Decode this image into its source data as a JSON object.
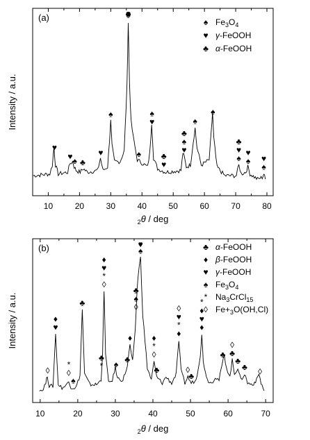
{
  "chart_data": [
    {
      "type": "line",
      "panel_label": "(a)",
      "xlabel": "2θ / deg",
      "ylabel": "Intensity / a.u.",
      "xlim": [
        5,
        82
      ],
      "xticks": [
        10,
        20,
        30,
        40,
        50,
        60,
        70,
        80
      ],
      "ylim": [
        0,
        1
      ],
      "legend_position": "top-right",
      "legend": [
        {
          "symbol": "♠",
          "label": "Fe3O4"
        },
        {
          "symbol": "♥",
          "label": "γ-FeOOH"
        },
        {
          "symbol": "♣",
          "label": "α-FeOOH"
        }
      ],
      "series": [
        {
          "x": [
            5.2,
            10.5,
            11.3,
            11.8,
            12.3,
            13.2,
            16.2,
            17.0,
            17.8,
            18.3,
            18.9,
            20.2,
            21.2,
            22.5,
            25.8,
            26.7,
            27.5,
            29.0,
            29.6,
            30.0,
            30.4,
            31.2,
            33.0,
            34.3,
            35.2,
            35.6,
            36.0,
            36.5,
            37.3,
            38.5,
            41.8,
            42.5,
            43.1,
            43.7,
            45.0,
            46.2,
            47.5,
            52.5,
            53.1,
            53.6,
            54.2,
            55.5,
            56.4,
            57.0,
            57.6,
            59.0,
            61.5,
            62.2,
            62.6,
            63.0,
            64.0,
            66.5,
            70.2,
            71.0,
            71.8,
            73.2,
            73.9,
            74.6,
            77.0,
            78.5,
            79.0,
            79.5
          ],
          "y": [
            0.09,
            0.1,
            0.15,
            0.25,
            0.15,
            0.1,
            0.11,
            0.16,
            0.17,
            0.14,
            0.12,
            0.11,
            0.13,
            0.11,
            0.12,
            0.19,
            0.12,
            0.14,
            0.29,
            0.4,
            0.26,
            0.17,
            0.17,
            0.23,
            0.6,
            0.96,
            0.62,
            0.4,
            0.3,
            0.18,
            0.14,
            0.22,
            0.39,
            0.19,
            0.13,
            0.12,
            0.11,
            0.12,
            0.22,
            0.19,
            0.14,
            0.15,
            0.28,
            0.36,
            0.25,
            0.15,
            0.18,
            0.34,
            0.45,
            0.3,
            0.14,
            0.09,
            0.09,
            0.15,
            0.1,
            0.11,
            0.14,
            0.1,
            0.07,
            0.08,
            0.1,
            0.07
          ]
        }
      ],
      "peak_markers": [
        {
          "x": 12,
          "symbols": "♥"
        },
        {
          "x": 17,
          "symbols": "♥"
        },
        {
          "x": 18.5,
          "symbols": "♠"
        },
        {
          "x": 21,
          "symbols": "♣"
        },
        {
          "x": 26.8,
          "symbols": "♥"
        },
        {
          "x": 30,
          "symbols": "♠"
        },
        {
          "x": 35.6,
          "symbols": "♣♥♠"
        },
        {
          "x": 39,
          "symbols": "♠"
        },
        {
          "x": 43.2,
          "symbols": "♠♥"
        },
        {
          "x": 47,
          "symbols": "♣♥"
        },
        {
          "x": 53.5,
          "symbols": "♣♠♥"
        },
        {
          "x": 57,
          "symbols": "♠"
        },
        {
          "x": 62.7,
          "symbols": "♠"
        },
        {
          "x": 71,
          "symbols": "♣♥♠"
        },
        {
          "x": 74,
          "symbols": "♥♠"
        },
        {
          "x": 79,
          "symbols": "♥♠"
        }
      ]
    },
    {
      "type": "line",
      "panel_label": "(b)",
      "xlabel": "2θ / deg",
      "ylabel": "Intensity / a.u.",
      "xlim": [
        8,
        72
      ],
      "xticks": [
        10,
        20,
        30,
        40,
        50,
        60,
        70
      ],
      "ylim": [
        0,
        1
      ],
      "legend_position": "top-right",
      "legend": [
        {
          "symbol": "♣",
          "label": "α-FeOOH"
        },
        {
          "symbol": "♦",
          "label": "β-FeOOH"
        },
        {
          "symbol": "♥",
          "label": "γ-FeOOH"
        },
        {
          "symbol": "♠",
          "label": "Fe3O4"
        },
        {
          "symbol": "*",
          "label": "Na3CrCl15"
        },
        {
          "symbol": "◊",
          "label": "Fe+3O(OH,Cl)"
        }
      ],
      "series": [
        {
          "x": [
            9.8,
            10.5,
            11.5,
            11.9,
            12.4,
            13.4,
            14.1,
            14.8,
            15.8,
            16.8,
            17.6,
            18.2,
            19.5,
            20.6,
            21.2,
            21.8,
            23.2,
            25.0,
            26.2,
            26.6,
            27.0,
            27.4,
            28.2,
            29.2,
            30.0,
            30.6,
            32.0,
            33.2,
            33.9,
            34.6,
            35.3,
            35.8,
            36.3,
            36.7,
            37.3,
            38.5,
            39.6,
            40.3,
            41.0,
            42.5,
            43.5,
            45.0,
            46.2,
            46.9,
            47.5,
            48.5,
            49.3,
            50.2,
            51.5,
            52.6,
            53.0,
            53.4,
            54.5,
            55.6,
            56.6,
            57.6,
            58.4,
            59.0,
            59.6,
            60.5,
            61.1,
            61.7,
            62.6,
            63.4,
            64.4,
            65.2,
            66.5,
            67.6,
            68.2,
            68.8,
            69.6
          ],
          "y": [
            0.06,
            0.05,
            0.1,
            0.15,
            0.08,
            0.08,
            0.42,
            0.09,
            0.07,
            0.08,
            0.12,
            0.07,
            0.07,
            0.15,
            0.58,
            0.16,
            0.09,
            0.09,
            0.12,
            0.3,
            0.7,
            0.3,
            0.1,
            0.12,
            0.2,
            0.13,
            0.12,
            0.21,
            0.35,
            0.24,
            0.44,
            0.72,
            0.86,
            0.92,
            0.55,
            0.2,
            0.12,
            0.24,
            0.14,
            0.1,
            0.14,
            0.1,
            0.16,
            0.38,
            0.18,
            0.1,
            0.14,
            0.1,
            0.12,
            0.28,
            0.42,
            0.24,
            0.12,
            0.1,
            0.14,
            0.12,
            0.22,
            0.28,
            0.2,
            0.14,
            0.25,
            0.16,
            0.2,
            0.12,
            0.16,
            0.1,
            0.09,
            0.12,
            0.16,
            0.1,
            0.05
          ]
        }
      ],
      "peak_markers": [
        {
          "x": 12,
          "symbols": "◊"
        },
        {
          "x": 14.1,
          "symbols": "♦♥"
        },
        {
          "x": 17.6,
          "symbols": "*◊"
        },
        {
          "x": 18.8,
          "symbols": "♠"
        },
        {
          "x": 21.2,
          "symbols": "♣"
        },
        {
          "x": 26.3,
          "symbols": "♣*"
        },
        {
          "x": 27,
          "symbols": "♦♥*◊"
        },
        {
          "x": 30.2,
          "symbols": "♠"
        },
        {
          "x": 33.2,
          "symbols": "♣"
        },
        {
          "x": 33.9,
          "symbols": "♦"
        },
        {
          "x": 35.5,
          "symbols": "♣♠◊"
        },
        {
          "x": 36.7,
          "symbols": "♦♥♠"
        },
        {
          "x": 40.3,
          "symbols": "♦*◊"
        },
        {
          "x": 41,
          "symbols": "♣"
        },
        {
          "x": 46.9,
          "symbols": "◊♥*♦"
        },
        {
          "x": 49.3,
          "symbols": "◊"
        },
        {
          "x": 50.2,
          "symbols": "♣"
        },
        {
          "x": 53,
          "symbols": "*♦♥♦"
        },
        {
          "x": 58.6,
          "symbols": "♣"
        },
        {
          "x": 61.1,
          "symbols": "◊♣"
        },
        {
          "x": 62.6,
          "symbols": "♣"
        },
        {
          "x": 64.4,
          "symbols": "♣"
        },
        {
          "x": 68.5,
          "symbols": "◊"
        }
      ]
    }
  ]
}
